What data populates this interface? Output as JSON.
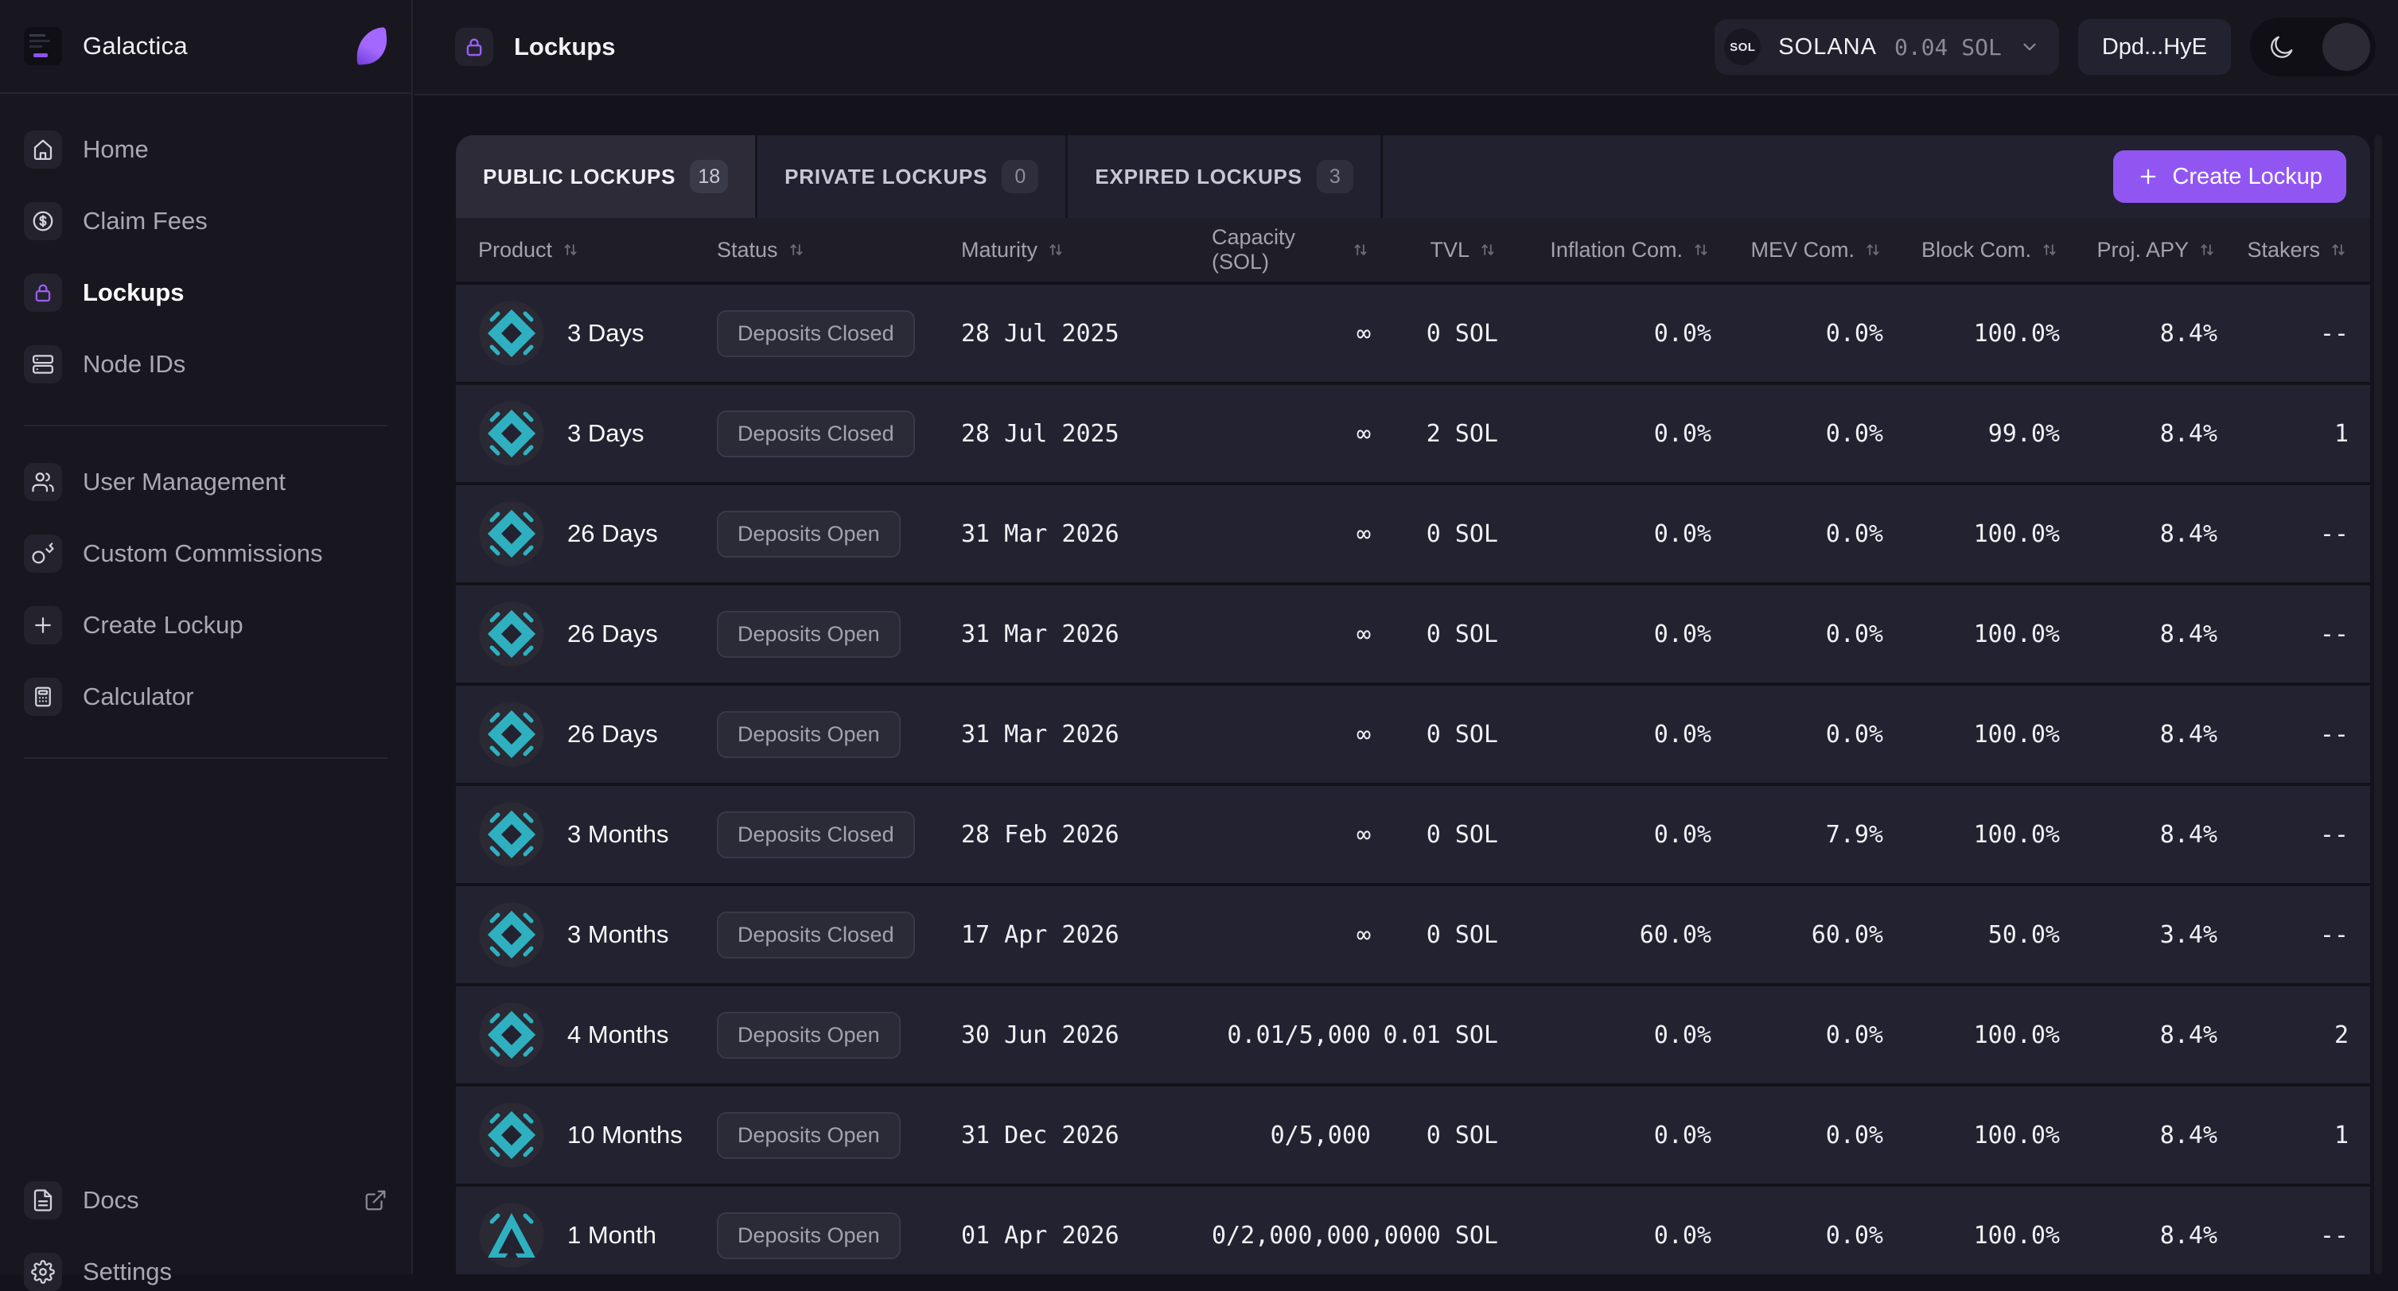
{
  "brand": {
    "name": "Galactica"
  },
  "sidebar": {
    "main": [
      {
        "label": "Home",
        "icon": "home"
      },
      {
        "label": "Claim Fees",
        "icon": "dollar-circle"
      },
      {
        "label": "Lockups",
        "icon": "lock",
        "active": true
      },
      {
        "label": "Node IDs",
        "icon": "server"
      }
    ],
    "secondary": [
      {
        "label": "User Management",
        "icon": "users"
      },
      {
        "label": "Custom Commissions",
        "icon": "key"
      },
      {
        "label": "Create Lockup",
        "icon": "plus"
      },
      {
        "label": "Calculator",
        "icon": "calculator"
      }
    ],
    "footer": [
      {
        "label": "Docs",
        "icon": "file-text",
        "external": true
      },
      {
        "label": "Settings",
        "icon": "gear"
      }
    ]
  },
  "topbar": {
    "title": "Lockups",
    "network": {
      "token": "SOL",
      "name": "SOLANA",
      "balance": "0.04 SOL"
    },
    "wallet": "Dpd...HyE"
  },
  "tabs": [
    {
      "label": "PUBLIC LOCKUPS",
      "count": "18",
      "active": true
    },
    {
      "label": "PRIVATE LOCKUPS",
      "count": "0",
      "active": false
    },
    {
      "label": "EXPIRED LOCKUPS",
      "count": "3",
      "active": false
    }
  ],
  "create_button": {
    "label": "Create Lockup"
  },
  "table": {
    "columns": [
      "Product",
      "Status",
      "Maturity",
      "Capacity (SOL)",
      "TVL",
      "Inflation Com.",
      "MEV Com.",
      "Block Com.",
      "Proj. APY",
      "Stakers"
    ],
    "rows": [
      {
        "icon": "diamond",
        "product": "3 Days",
        "status": "Deposits Closed",
        "maturity": "28 Jul 2025",
        "capacity": "∞",
        "tvl": "0 SOL",
        "inflation": "0.0%",
        "mev": "0.0%",
        "block": "100.0%",
        "apy": "8.4%",
        "stakers": "--"
      },
      {
        "icon": "diamond",
        "product": "3 Days",
        "status": "Deposits Closed",
        "maturity": "28 Jul 2025",
        "capacity": "∞",
        "tvl": "2 SOL",
        "inflation": "0.0%",
        "mev": "0.0%",
        "block": "99.0%",
        "apy": "8.4%",
        "stakers": "1"
      },
      {
        "icon": "diamond",
        "product": "26 Days",
        "status": "Deposits Open",
        "maturity": "31 Mar 2026",
        "capacity": "∞",
        "tvl": "0 SOL",
        "inflation": "0.0%",
        "mev": "0.0%",
        "block": "100.0%",
        "apy": "8.4%",
        "stakers": "--"
      },
      {
        "icon": "diamond",
        "product": "26 Days",
        "status": "Deposits Open",
        "maturity": "31 Mar 2026",
        "capacity": "∞",
        "tvl": "0 SOL",
        "inflation": "0.0%",
        "mev": "0.0%",
        "block": "100.0%",
        "apy": "8.4%",
        "stakers": "--"
      },
      {
        "icon": "diamond",
        "product": "26 Days",
        "status": "Deposits Open",
        "maturity": "31 Mar 2026",
        "capacity": "∞",
        "tvl": "0 SOL",
        "inflation": "0.0%",
        "mev": "0.0%",
        "block": "100.0%",
        "apy": "8.4%",
        "stakers": "--"
      },
      {
        "icon": "diamond",
        "product": "3 Months",
        "status": "Deposits Closed",
        "maturity": "28 Feb 2026",
        "capacity": "∞",
        "tvl": "0 SOL",
        "inflation": "0.0%",
        "mev": "7.9%",
        "block": "100.0%",
        "apy": "8.4%",
        "stakers": "--"
      },
      {
        "icon": "diamond",
        "product": "3 Months",
        "status": "Deposits Closed",
        "maturity": "17 Apr 2026",
        "capacity": "∞",
        "tvl": "0 SOL",
        "inflation": "60.0%",
        "mev": "60.0%",
        "block": "50.0%",
        "apy": "3.4%",
        "stakers": "--"
      },
      {
        "icon": "diamond",
        "product": "4 Months",
        "status": "Deposits Open",
        "maturity": "30 Jun 2026",
        "capacity": "0.01/5,000",
        "tvl": "0.01 SOL",
        "inflation": "0.0%",
        "mev": "0.0%",
        "block": "100.0%",
        "apy": "8.4%",
        "stakers": "2"
      },
      {
        "icon": "diamond",
        "product": "10 Months",
        "status": "Deposits Open",
        "maturity": "31 Dec 2026",
        "capacity": "0/5,000",
        "tvl": "0 SOL",
        "inflation": "0.0%",
        "mev": "0.0%",
        "block": "100.0%",
        "apy": "8.4%",
        "stakers": "1"
      },
      {
        "icon": "triangle",
        "product": "1 Month",
        "status": "Deposits Open",
        "maturity": "01 Apr 2026",
        "capacity": "0/2,000,000,000",
        "tvl": "0 SOL",
        "inflation": "0.0%",
        "mev": "0.0%",
        "block": "100.0%",
        "apy": "8.4%",
        "stakers": "--"
      }
    ]
  },
  "colors": {
    "accent_purple": "#9156f2",
    "product_teal": "#2fb0c0",
    "status_text": "#a3a2ae"
  }
}
